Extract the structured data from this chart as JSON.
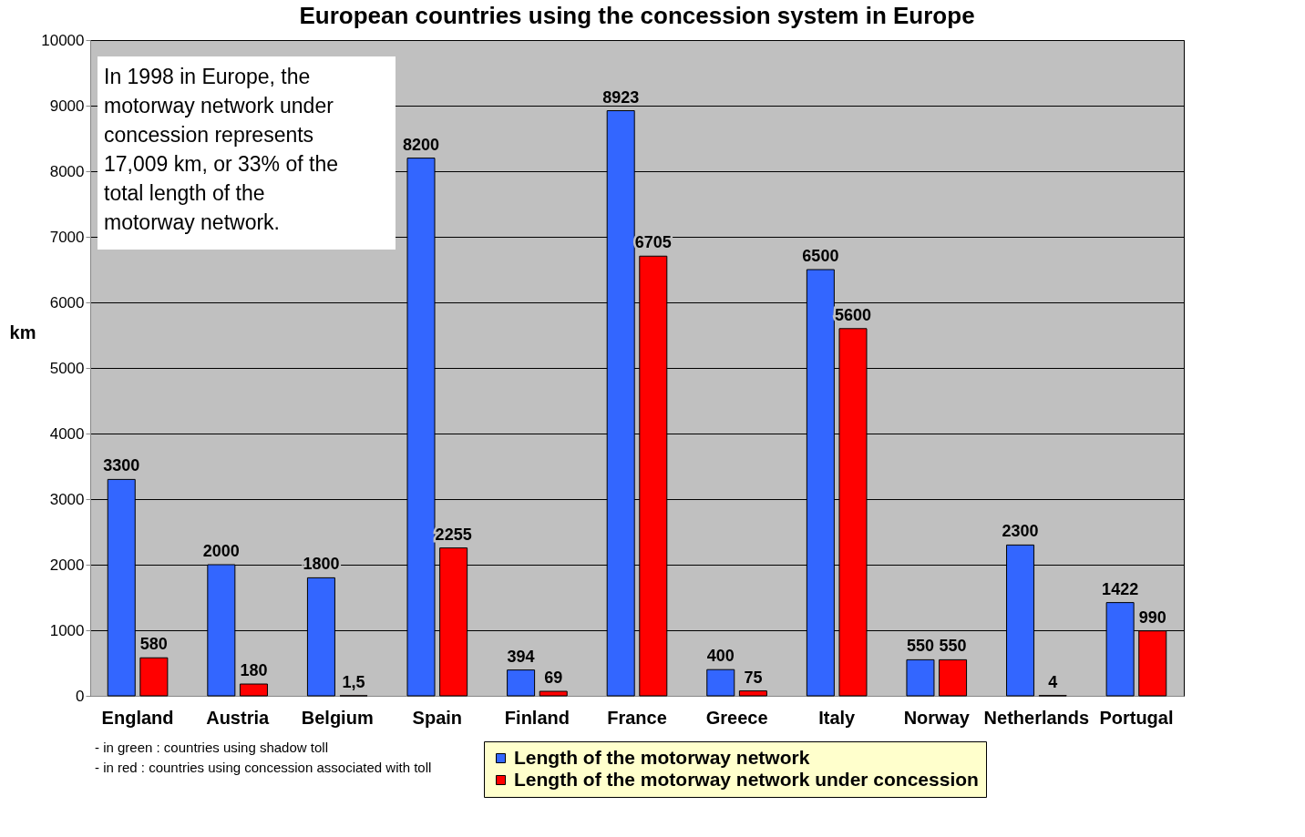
{
  "chart_data": {
    "type": "bar",
    "title": "European countries using the concession system in Europe",
    "ylabel": "km",
    "categories": [
      "England",
      "Austria",
      "Belgium",
      "Spain",
      "Finland",
      "France",
      "Greece",
      "Italy",
      "Norway",
      "Netherlands",
      "Portugal"
    ],
    "series": [
      {
        "name": "Length of the motorway network",
        "color": "#3366ff",
        "values": [
          3300,
          2000,
          1800,
          8200,
          394,
          8923,
          400,
          6500,
          550,
          2300,
          1422
        ],
        "value_labels": [
          "3300",
          "2000",
          "1800",
          "8200",
          "394",
          "8923",
          "400",
          "6500",
          "550",
          "2300",
          "1422"
        ]
      },
      {
        "name": "Length of the motorway network under concession",
        "color": "#ff0000",
        "values": [
          580,
          180,
          1.5,
          2255,
          69,
          6705,
          75,
          5600,
          550,
          4,
          990
        ],
        "value_labels": [
          "580",
          "180",
          "1,5",
          "2255",
          "69",
          "6705",
          "75",
          "5600",
          "550",
          "4",
          "990"
        ]
      }
    ],
    "ylim": [
      0,
      10000
    ],
    "yticks": [
      0,
      1000,
      2000,
      3000,
      4000,
      5000,
      6000,
      7000,
      8000,
      9000,
      10000
    ],
    "grid": "y",
    "legend": "bottom right",
    "annotations": [
      "In 1998 in Europe, the motorway network under concession represents 17,009 km, or 33% of the total length of the motorway network.",
      "- in green : countries using shadow toll",
      "- in red : countries using concession associated with toll"
    ]
  }
}
